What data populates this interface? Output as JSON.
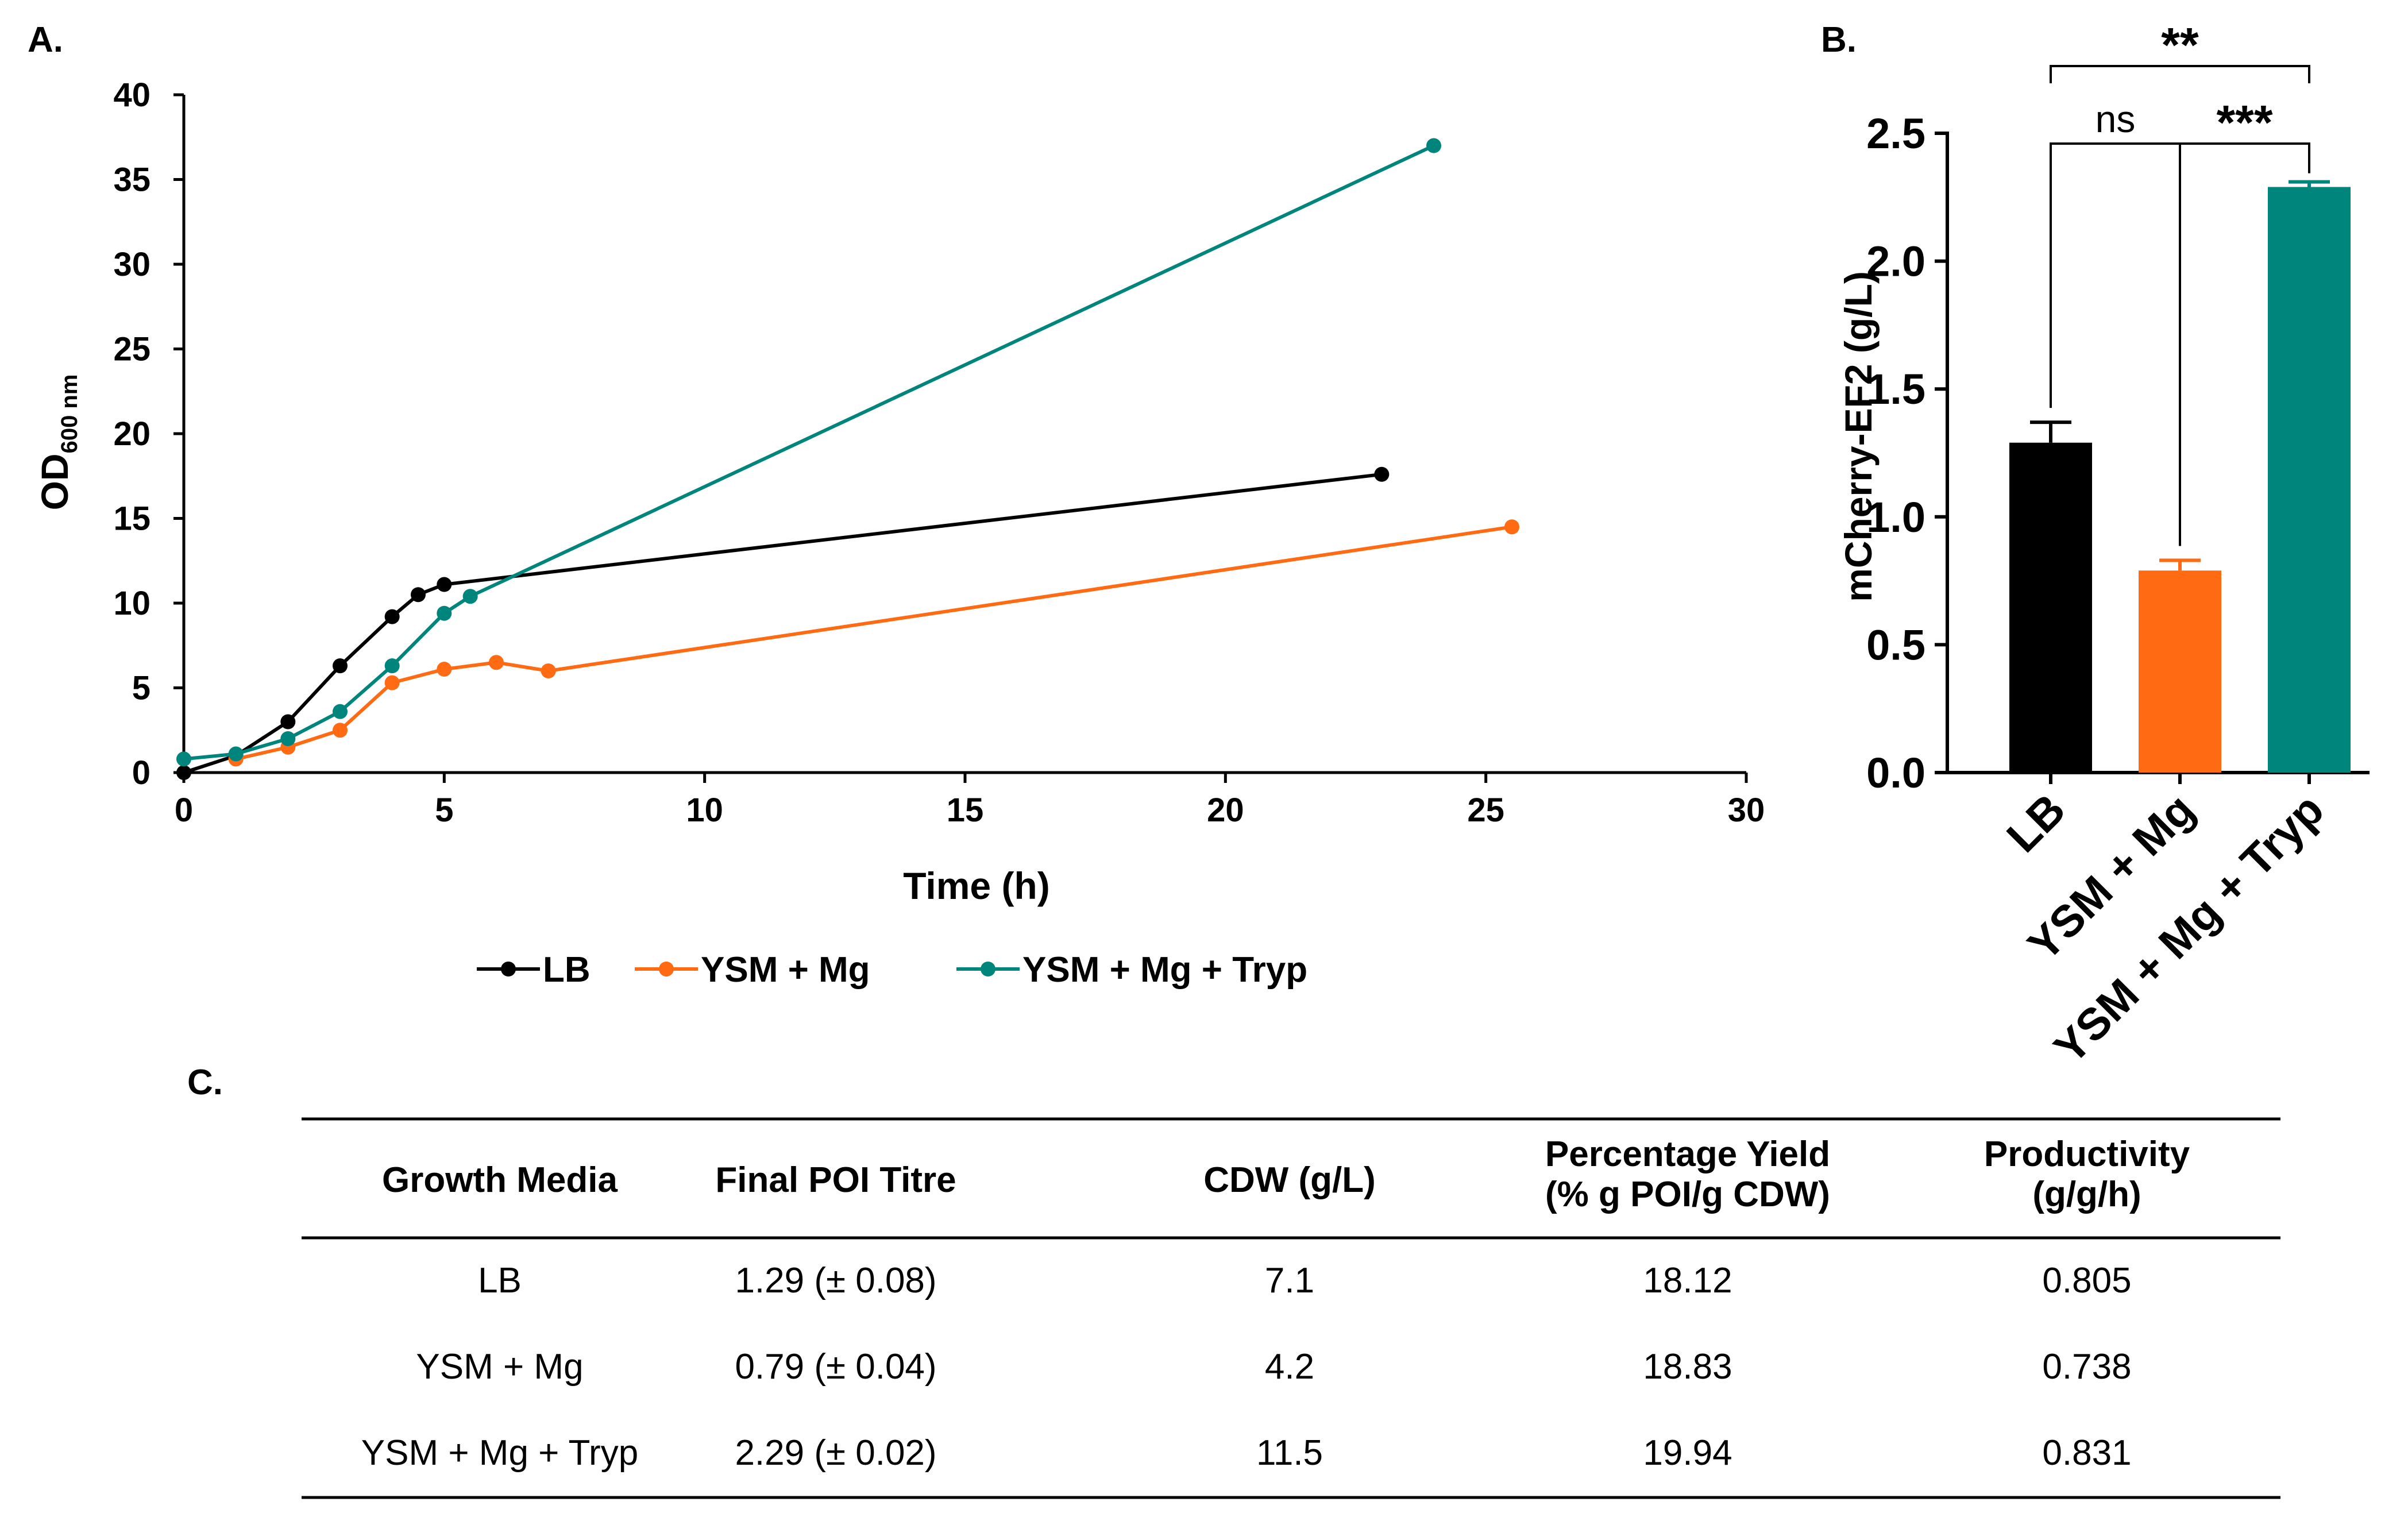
{
  "panels": {
    "a": "A.",
    "b": "B.",
    "c": "C."
  },
  "chart_data": [
    {
      "type": "line",
      "panel": "A.",
      "xlabel": "Time (h)",
      "ylabel_main": "OD",
      "ylabel_sub": "600 nm",
      "xlim": [
        0,
        30
      ],
      "ylim": [
        0,
        40
      ],
      "xticks": [
        0,
        5,
        10,
        15,
        20,
        25,
        30
      ],
      "yticks": [
        0,
        5,
        10,
        15,
        20,
        25,
        30,
        35,
        40
      ],
      "legend_position": "bottom",
      "series": [
        {
          "name": "LB",
          "color": "#000000",
          "x": [
            0,
            1,
            2,
            3,
            4,
            4.5,
            5,
            23
          ],
          "y": [
            0,
            1.0,
            3.0,
            6.3,
            9.2,
            10.5,
            11.1,
            17.6
          ]
        },
        {
          "name": "YSM + Mg",
          "color": "#ff6a13",
          "x": [
            1,
            2,
            3,
            4,
            5,
            6,
            7,
            25.5
          ],
          "y": [
            0.8,
            1.5,
            2.5,
            5.3,
            6.1,
            6.5,
            6.0,
            14.5
          ]
        },
        {
          "name": "YSM + Mg + Tryp",
          "color": "#00857d",
          "x": [
            0,
            1,
            2,
            3,
            4,
            5,
            5.5,
            24
          ],
          "y": [
            0.8,
            1.1,
            2.0,
            3.6,
            6.3,
            9.4,
            10.4,
            37.0
          ]
        }
      ]
    },
    {
      "type": "bar",
      "panel": "B.",
      "ylabel": "mCherry-EF2 (g/L)",
      "ylim": [
        0,
        2.5
      ],
      "yticks": [
        "0.0",
        "0.5",
        "1.0",
        "1.5",
        "2.0",
        "2.5"
      ],
      "categories": [
        "LB",
        "YSM + Mg",
        "YSM + Mg + Tryp"
      ],
      "values": [
        1.29,
        0.79,
        2.29
      ],
      "errors": [
        0.08,
        0.04,
        0.02
      ],
      "colors": [
        "#000000",
        "#ff6a13",
        "#00857d"
      ],
      "significance": [
        {
          "pair": [
            "LB",
            "YSM + Mg + Tryp"
          ],
          "label": "**"
        },
        {
          "pair": [
            "LB",
            "YSM + Mg"
          ],
          "label": "ns"
        },
        {
          "pair": [
            "YSM + Mg",
            "YSM + Mg + Tryp"
          ],
          "label": "***"
        }
      ]
    }
  ],
  "table": {
    "headers": [
      [
        "Growth Media"
      ],
      [
        "Final POI Titre"
      ],
      [
        "CDW (g/L)"
      ],
      [
        "Percentage Yield",
        "(% g POI/g CDW)"
      ],
      [
        "Productivity",
        "(g/g/h)"
      ]
    ],
    "rows": [
      [
        "LB",
        "1.29 (± 0.08)",
        "7.1",
        "18.12",
        "0.805"
      ],
      [
        "YSM + Mg",
        "0.79 (± 0.04)",
        "4.2",
        "18.83",
        "0.738"
      ],
      [
        "YSM + Mg + Tryp",
        "2.29 (± 0.02)",
        "11.5",
        "19.94",
        "0.831"
      ]
    ]
  }
}
